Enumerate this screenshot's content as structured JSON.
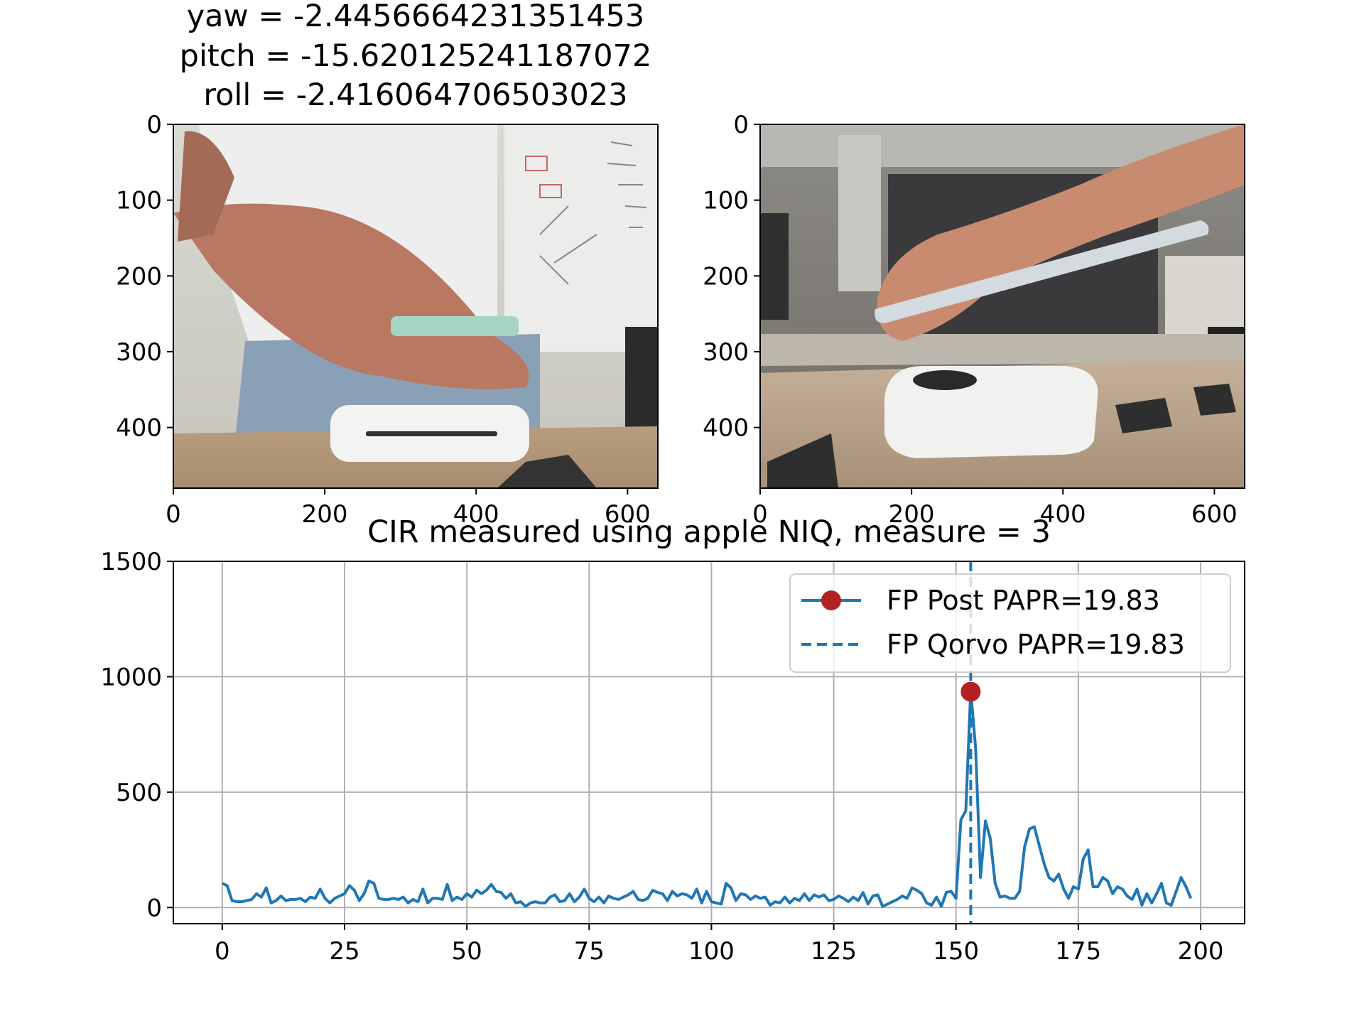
{
  "figure": {
    "pose_title_lines": [
      "yaw = -2.4456664231351453",
      "pitch = -15.620125241187072",
      "roll = -2.416064706503023"
    ]
  },
  "images": [
    {
      "description_icon": "photo-left-hand-holding-phone-over-reader-front-view",
      "x_ticks": [
        "0",
        "200",
        "400",
        "600"
      ],
      "y_ticks": [
        "0",
        "100",
        "200",
        "300",
        "400"
      ],
      "x_range": [
        0,
        640
      ],
      "y_range": [
        0,
        480
      ]
    },
    {
      "description_icon": "photo-right-hand-holding-phone-over-reader-side-view",
      "x_ticks": [
        "0",
        "200",
        "400",
        "600"
      ],
      "y_ticks": [
        "0",
        "100",
        "200",
        "300",
        "400"
      ],
      "x_range": [
        0,
        640
      ],
      "y_range": [
        0,
        480
      ]
    }
  ],
  "chart_data": {
    "type": "line",
    "title": "CIR measured using apple NIQ, measure = 3",
    "xlabel": "",
    "ylabel": "",
    "xlim": [
      -10,
      209
    ],
    "ylim": [
      -70,
      1500
    ],
    "x_ticks": [
      0,
      25,
      50,
      75,
      100,
      125,
      150,
      175,
      200
    ],
    "y_ticks": [
      0,
      500,
      1000,
      1500
    ],
    "grid": true,
    "legend_position": "top-right",
    "colors": {
      "line": "#1f77b4",
      "marker": "#b22222",
      "dashed": "#1f77b4"
    },
    "series": [
      {
        "name": "FP Post PAPR=19.83",
        "x_start": 0,
        "values": [
          105,
          95,
          30,
          25,
          25,
          30,
          35,
          60,
          45,
          85,
          20,
          30,
          50,
          30,
          35,
          35,
          40,
          25,
          45,
          40,
          80,
          40,
          20,
          40,
          50,
          60,
          95,
          75,
          30,
          60,
          115,
          105,
          40,
          35,
          35,
          40,
          35,
          45,
          20,
          35,
          25,
          80,
          20,
          40,
          40,
          35,
          100,
          30,
          45,
          35,
          60,
          45,
          75,
          60,
          75,
          100,
          70,
          65,
          40,
          60,
          20,
          25,
          5,
          20,
          25,
          20,
          20,
          45,
          55,
          25,
          30,
          60,
          25,
          45,
          80,
          40,
          25,
          45,
          20,
          50,
          40,
          35,
          45,
          55,
          70,
          35,
          30,
          40,
          75,
          65,
          60,
          30,
          70,
          50,
          60,
          55,
          40,
          80,
          20,
          70,
          25,
          20,
          15,
          105,
          85,
          30,
          60,
          55,
          35,
          50,
          40,
          45,
          10,
          25,
          20,
          45,
          20,
          40,
          30,
          60,
          30,
          55,
          45,
          55,
          30,
          35,
          50,
          40,
          25,
          45,
          30,
          65,
          15,
          50,
          55,
          5,
          15,
          25,
          35,
          50,
          40,
          85,
          75,
          60,
          20,
          10,
          45,
          5,
          65,
          70,
          40,
          380,
          420,
          940,
          690,
          130,
          375,
          300,
          105,
          45,
          50,
          40,
          40,
          70,
          260,
          340,
          350,
          270,
          190,
          130,
          115,
          145,
          80,
          40,
          90,
          80,
          210,
          250,
          90,
          90,
          130,
          115,
          60,
          90,
          80,
          50,
          35,
          80,
          10,
          60,
          20,
          60,
          105,
          20,
          10,
          70,
          130,
          90,
          40
        ],
        "marker": {
          "x": 153,
          "y": 935
        }
      },
      {
        "name": "FP Qorvo PAPR=19.83",
        "style": "dashed",
        "x": 153
      }
    ]
  }
}
